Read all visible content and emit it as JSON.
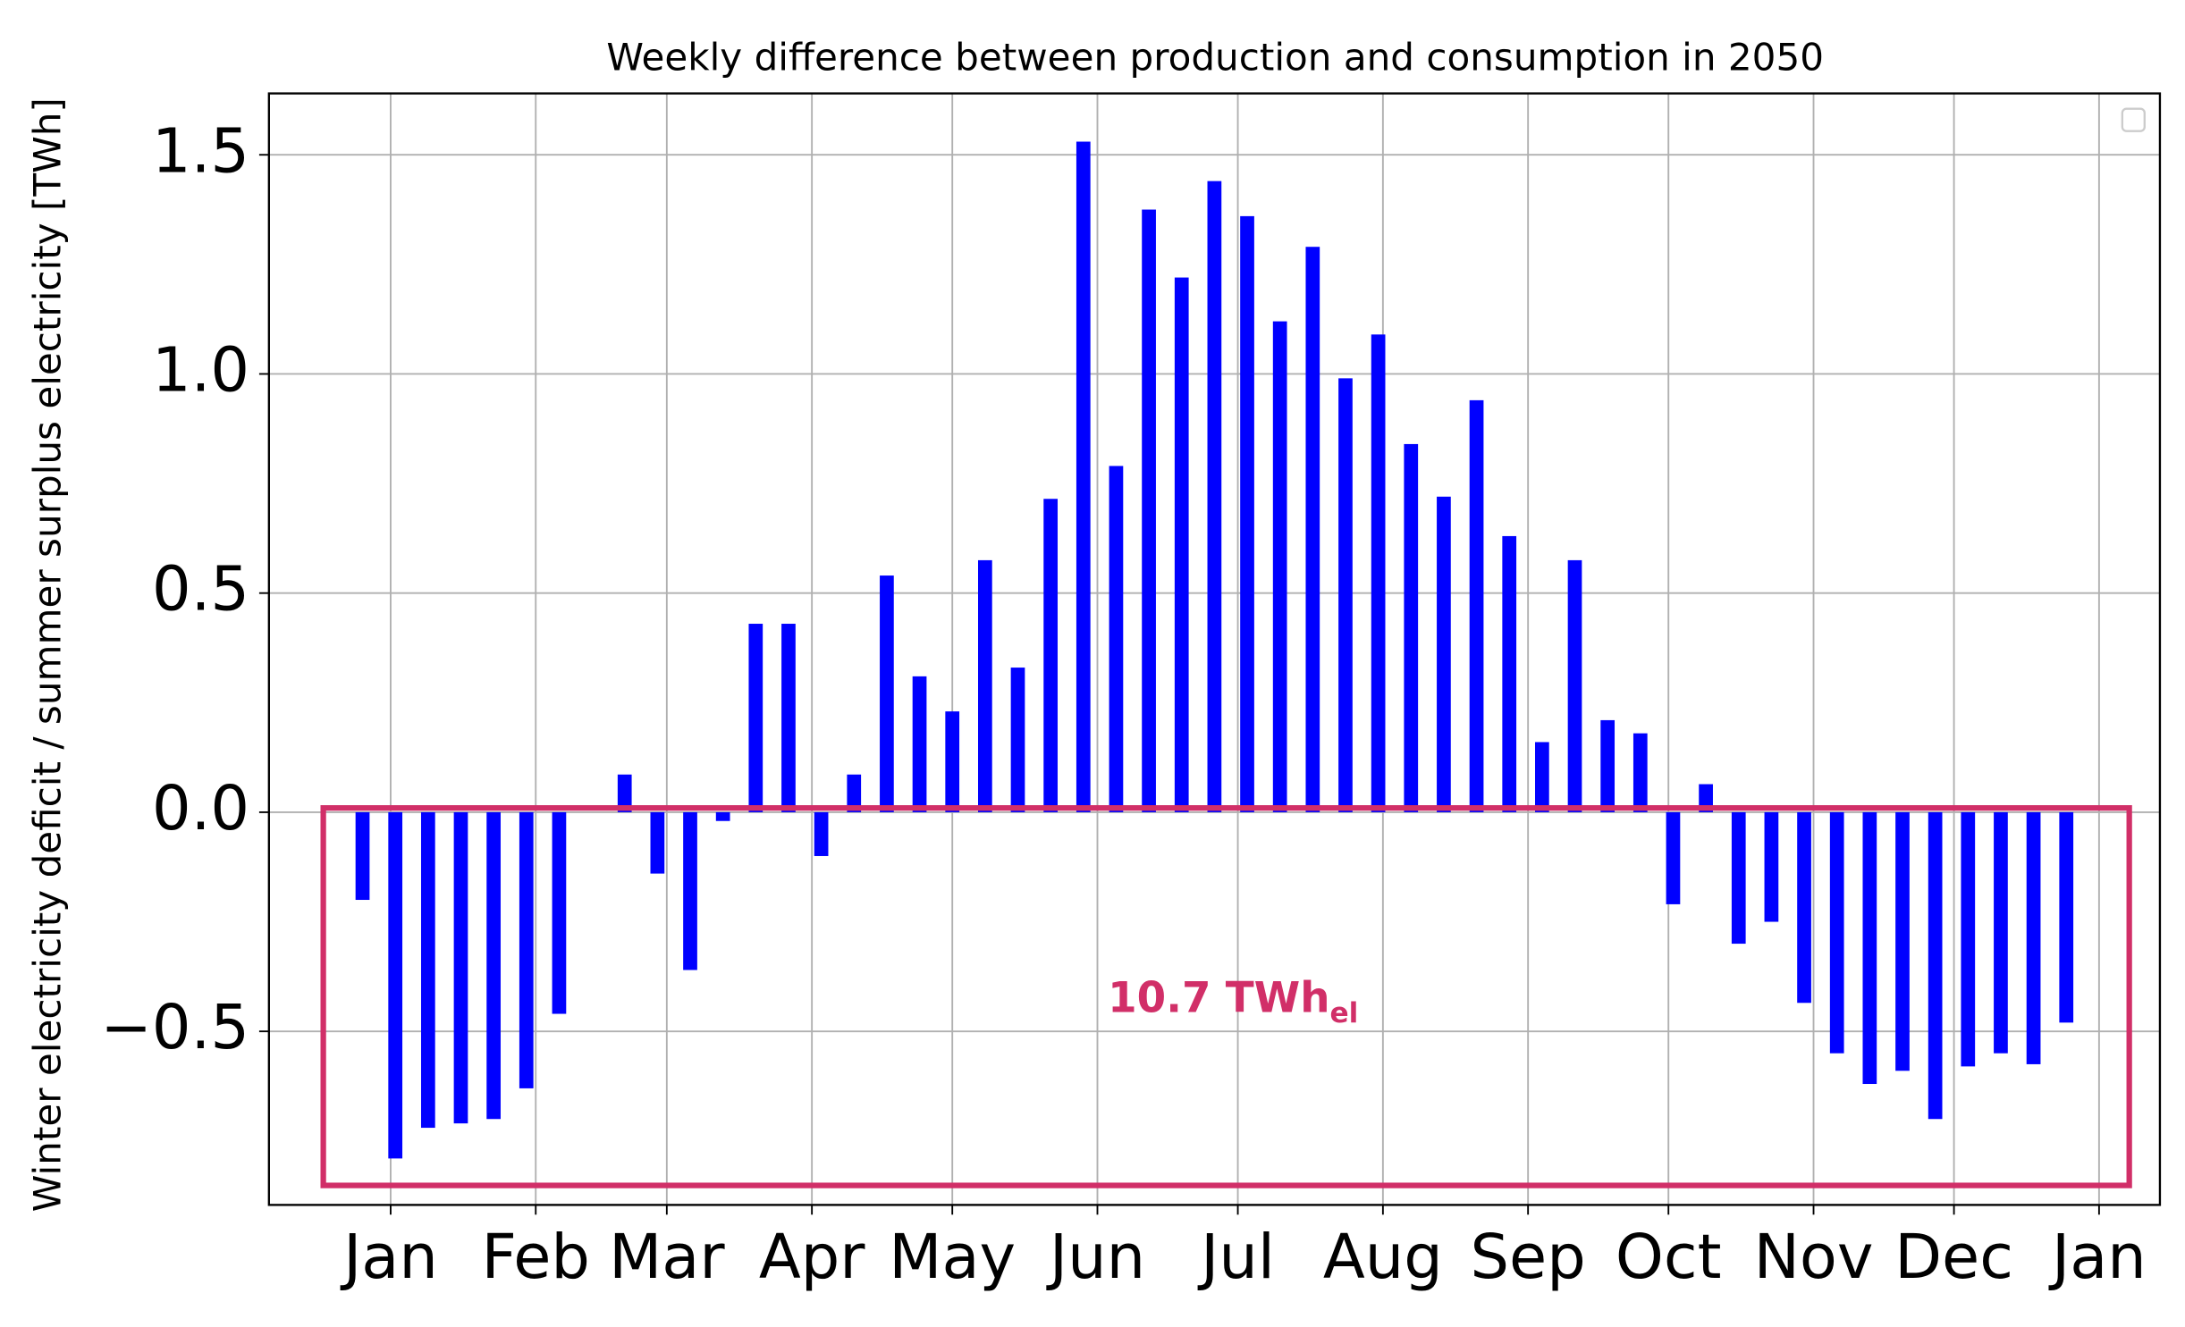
{
  "chart_data": {
    "type": "bar",
    "title": "Weekly difference between production and consumption in 2050",
    "y_label": "Winter electricity deficit / summer surplus electricity [TWh]",
    "x": [
      -6,
      1,
      8,
      15,
      22,
      29,
      36,
      43,
      50,
      57,
      64,
      71,
      78,
      85,
      92,
      99,
      106,
      113,
      120,
      127,
      134,
      141,
      148,
      155,
      162,
      169,
      176,
      183,
      190,
      197,
      204,
      211,
      218,
      225,
      232,
      239,
      246,
      253,
      260,
      267,
      274,
      281,
      288,
      295,
      302,
      309,
      316,
      323,
      330,
      337,
      344,
      351,
      358
    ],
    "values": [
      -0.2,
      -0.79,
      -0.72,
      -0.71,
      -0.7,
      -0.63,
      -0.46,
      0,
      0.086,
      -0.14,
      -0.36,
      -0.02,
      0.43,
      0.43,
      -0.1,
      0.086,
      0.54,
      0.31,
      0.23,
      0.575,
      0.33,
      0.715,
      1.53,
      0.79,
      1.375,
      1.22,
      1.44,
      1.36,
      1.12,
      1.29,
      0.99,
      1.09,
      0.84,
      0.72,
      0.94,
      0.63,
      0.16,
      0.575,
      0.21,
      0.18,
      -0.21,
      0.064,
      -0.3,
      -0.25,
      -0.435,
      -0.55,
      -0.62,
      -0.59,
      -0.7,
      -0.58,
      -0.55,
      -0.575,
      -0.48
    ],
    "color": "#0000ff",
    "bar_width": 3,
    "xlim": [
      -26,
      378
    ],
    "ylim": [
      -0.896,
      1.64
    ],
    "xticks": [
      {
        "value": 0,
        "label": "Jan"
      },
      {
        "value": 31,
        "label": "Feb"
      },
      {
        "value": 59,
        "label": "Mar"
      },
      {
        "value": 90,
        "label": "Apr"
      },
      {
        "value": 120,
        "label": "May"
      },
      {
        "value": 151,
        "label": "Jun"
      },
      {
        "value": 181,
        "label": "Jul"
      },
      {
        "value": 212,
        "label": "Aug"
      },
      {
        "value": 243,
        "label": "Sep"
      },
      {
        "value": 273,
        "label": "Oct"
      },
      {
        "value": 304,
        "label": "Nov"
      },
      {
        "value": 334,
        "label": "Dec"
      },
      {
        "value": 365,
        "label": "Jan"
      }
    ],
    "yticks": [
      {
        "value": -0.5,
        "label": "−0.5"
      },
      {
        "value": 0,
        "label": "0.0"
      },
      0.5,
      {
        "value": 1,
        "label": "1.0"
      },
      1.5
    ],
    "grid": true,
    "annotation": "10.7 TWh",
    "annotation_subscript": "el",
    "annotation_color": "#d12f68"
  }
}
